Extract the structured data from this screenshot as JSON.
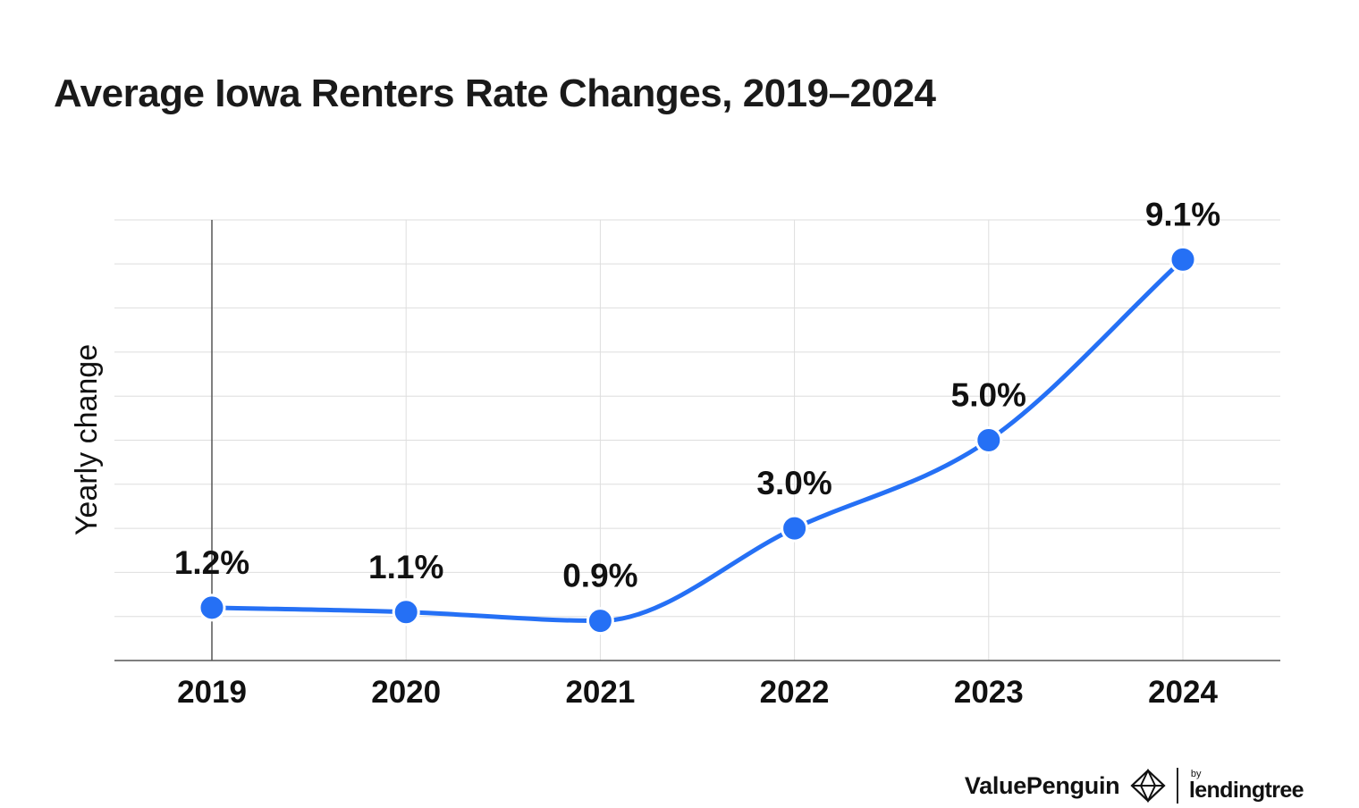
{
  "title": "Average Iowa Renters Rate Changes, 2019–2024",
  "chart_data": {
    "type": "line",
    "title": "Average Iowa Renters Rate Changes, 2019–2024",
    "xlabel": "",
    "ylabel": "Yearly change",
    "categories": [
      "2019",
      "2020",
      "2021",
      "2022",
      "2023",
      "2024"
    ],
    "series": [
      {
        "values": [
          1.2,
          1.1,
          0.9,
          3.0,
          5.0,
          9.1
        ],
        "labels": [
          "1.2%",
          "1.1%",
          "0.9%",
          "3.0%",
          "5.0%",
          "9.1%"
        ]
      }
    ],
    "ylim": [
      0,
      10
    ],
    "grid": true,
    "line_color": "#2570f5",
    "marker_color": "#2570f5"
  },
  "footer": {
    "brand": "ValuePenguin",
    "by": "by",
    "partner": "lendingtree"
  }
}
